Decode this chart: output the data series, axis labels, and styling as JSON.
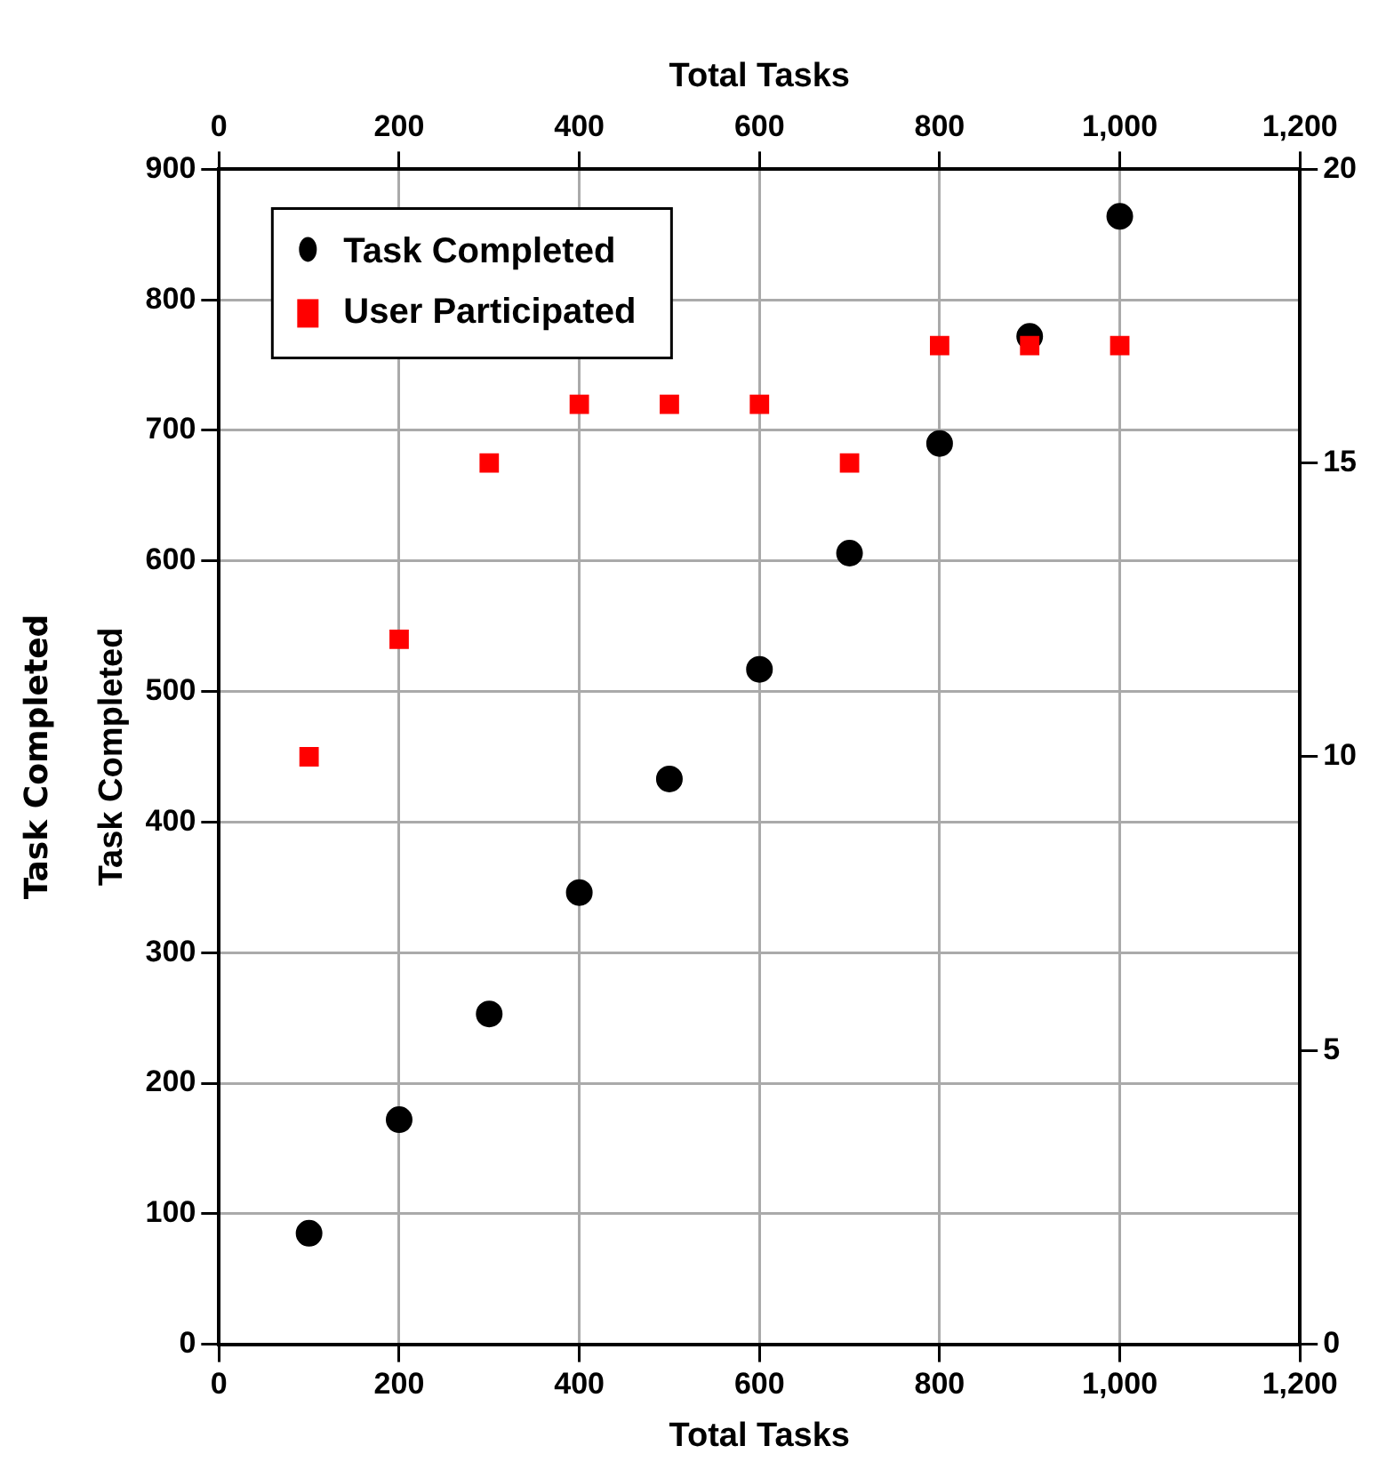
{
  "chart_data": {
    "type": "scatter",
    "xlabel": "Total Tasks",
    "x2label": "Total Tasks",
    "ylabel": "Task Completed",
    "x": [
      100,
      200,
      300,
      400,
      500,
      600,
      700,
      800,
      900,
      1000
    ],
    "series": [
      {
        "name": "Task Completed",
        "color": "#000000",
        "marker": "circle",
        "values": [
          85,
          172,
          253,
          346,
          433,
          517,
          606,
          690,
          772,
          864
        ]
      },
      {
        "name": "User Participated",
        "color": "#ff0000",
        "marker": "square",
        "axis": "y2",
        "values": [
          10,
          12,
          15,
          16,
          16,
          16,
          15,
          17,
          17,
          17
        ]
      }
    ],
    "xlim": [
      0,
      1200
    ],
    "xticks": [
      0,
      200,
      400,
      600,
      800,
      {
        "value": 1000,
        "label": "1,000"
      },
      {
        "value": 1200,
        "label": "1,200"
      }
    ],
    "x2lim": [
      0,
      1200
    ],
    "x2ticks": [
      0,
      200,
      400,
      600,
      800,
      {
        "value": 1000,
        "label": "1,000"
      },
      {
        "value": 1200,
        "label": "1,200"
      }
    ],
    "ylim": [
      0,
      900
    ],
    "yticks": [
      0,
      100,
      200,
      300,
      400,
      500,
      600,
      700,
      800,
      900
    ],
    "y2lim": [
      0,
      20
    ],
    "y2ticks": [
      0,
      5,
      10,
      15,
      20
    ],
    "annotations": [
      "Task Completed"
    ],
    "grid": true,
    "legend": "top left"
  }
}
